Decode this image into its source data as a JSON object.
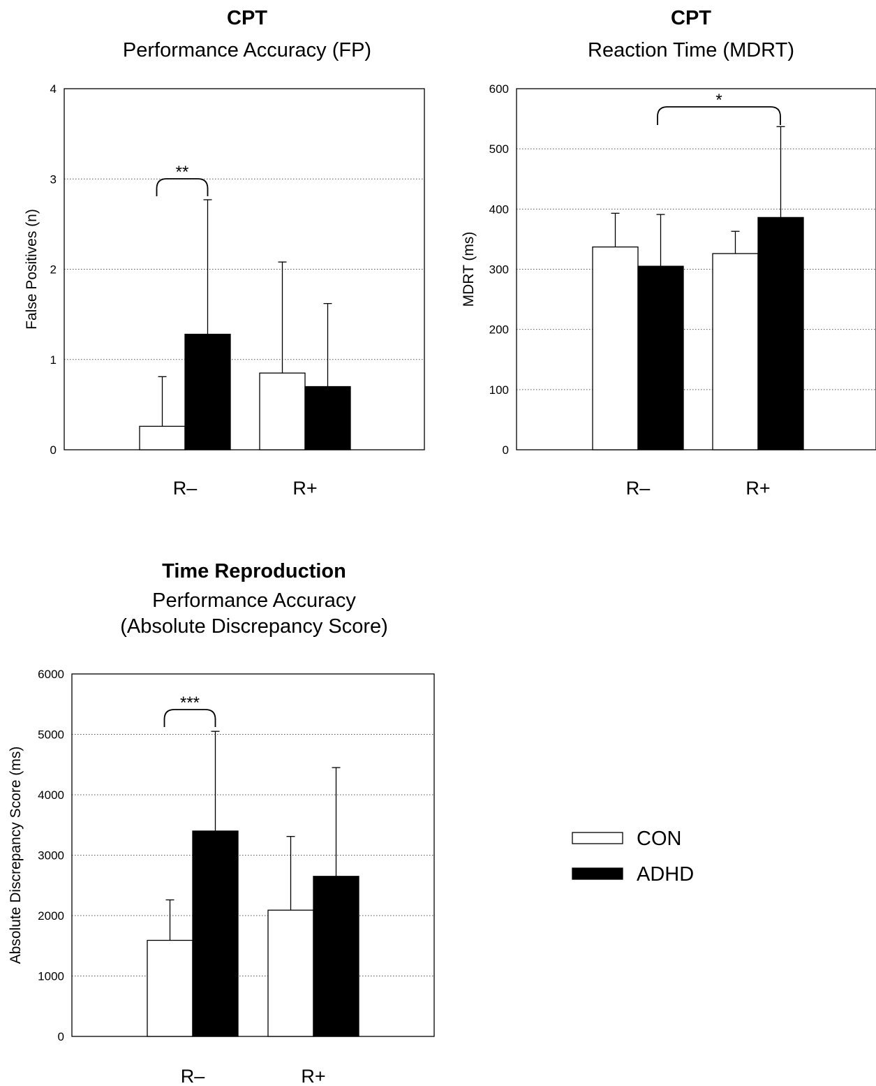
{
  "chart_data": [
    {
      "type": "bar",
      "title": "CPT",
      "subtitle": "Performance Accuracy (FP)",
      "xlabel": "",
      "ylabel": "False Positives (n)",
      "ylim": [
        0,
        4
      ],
      "yticks": [
        0,
        1,
        2,
        3,
        4
      ],
      "grid": "horizontal-dotted",
      "categories": [
        "R–",
        "R+"
      ],
      "series": [
        {
          "name": "CON",
          "color": "#ffffff",
          "values": [
            0.26,
            0.85
          ],
          "errors": [
            0.55,
            1.23
          ]
        },
        {
          "name": "ADHD",
          "color": "#000000",
          "values": [
            1.28,
            0.7
          ],
          "errors": [
            1.49,
            0.92
          ]
        }
      ],
      "significance": [
        {
          "category": "R–",
          "label": "**"
        }
      ]
    },
    {
      "type": "bar",
      "title": "CPT",
      "subtitle": "Reaction Time (MDRT)",
      "xlabel": "",
      "ylabel": "MDRT (ms)",
      "ylim": [
        0,
        600
      ],
      "yticks": [
        0,
        100,
        200,
        300,
        400,
        500,
        600
      ],
      "grid": "horizontal-dotted",
      "categories": [
        "R–",
        "R+"
      ],
      "series": [
        {
          "name": "CON",
          "color": "#ffffff",
          "values": [
            337,
            326
          ],
          "errors": [
            56,
            37
          ]
        },
        {
          "name": "ADHD",
          "color": "#000000",
          "values": [
            305,
            386
          ],
          "errors": [
            86,
            151
          ]
        }
      ],
      "significance": [
        {
          "between": [
            "R–",
            "R+"
          ],
          "series": "ADHD",
          "label": "*"
        }
      ]
    },
    {
      "type": "bar",
      "title": "Time Reproduction",
      "subtitle": "Performance Accuracy",
      "subtitle2": "(Absolute Discrepancy Score)",
      "xlabel": "",
      "ylabel": "Absolute Discrepancy Score (ms)",
      "ylim": [
        0,
        6000
      ],
      "yticks": [
        0,
        1000,
        2000,
        3000,
        4000,
        5000,
        6000
      ],
      "grid": "horizontal-dotted",
      "categories": [
        "R–",
        "R+"
      ],
      "series": [
        {
          "name": "CON",
          "color": "#ffffff",
          "values": [
            1590,
            2090
          ],
          "errors": [
            670,
            1220
          ]
        },
        {
          "name": "ADHD",
          "color": "#000000",
          "values": [
            3400,
            2650
          ],
          "errors": [
            1650,
            1800
          ]
        }
      ],
      "significance": [
        {
          "category": "R–",
          "label": "***"
        }
      ]
    }
  ],
  "legend": {
    "placement": "bottom-right",
    "items": [
      {
        "label": "CON",
        "color": "#ffffff"
      },
      {
        "label": "ADHD",
        "color": "#000000"
      }
    ]
  }
}
